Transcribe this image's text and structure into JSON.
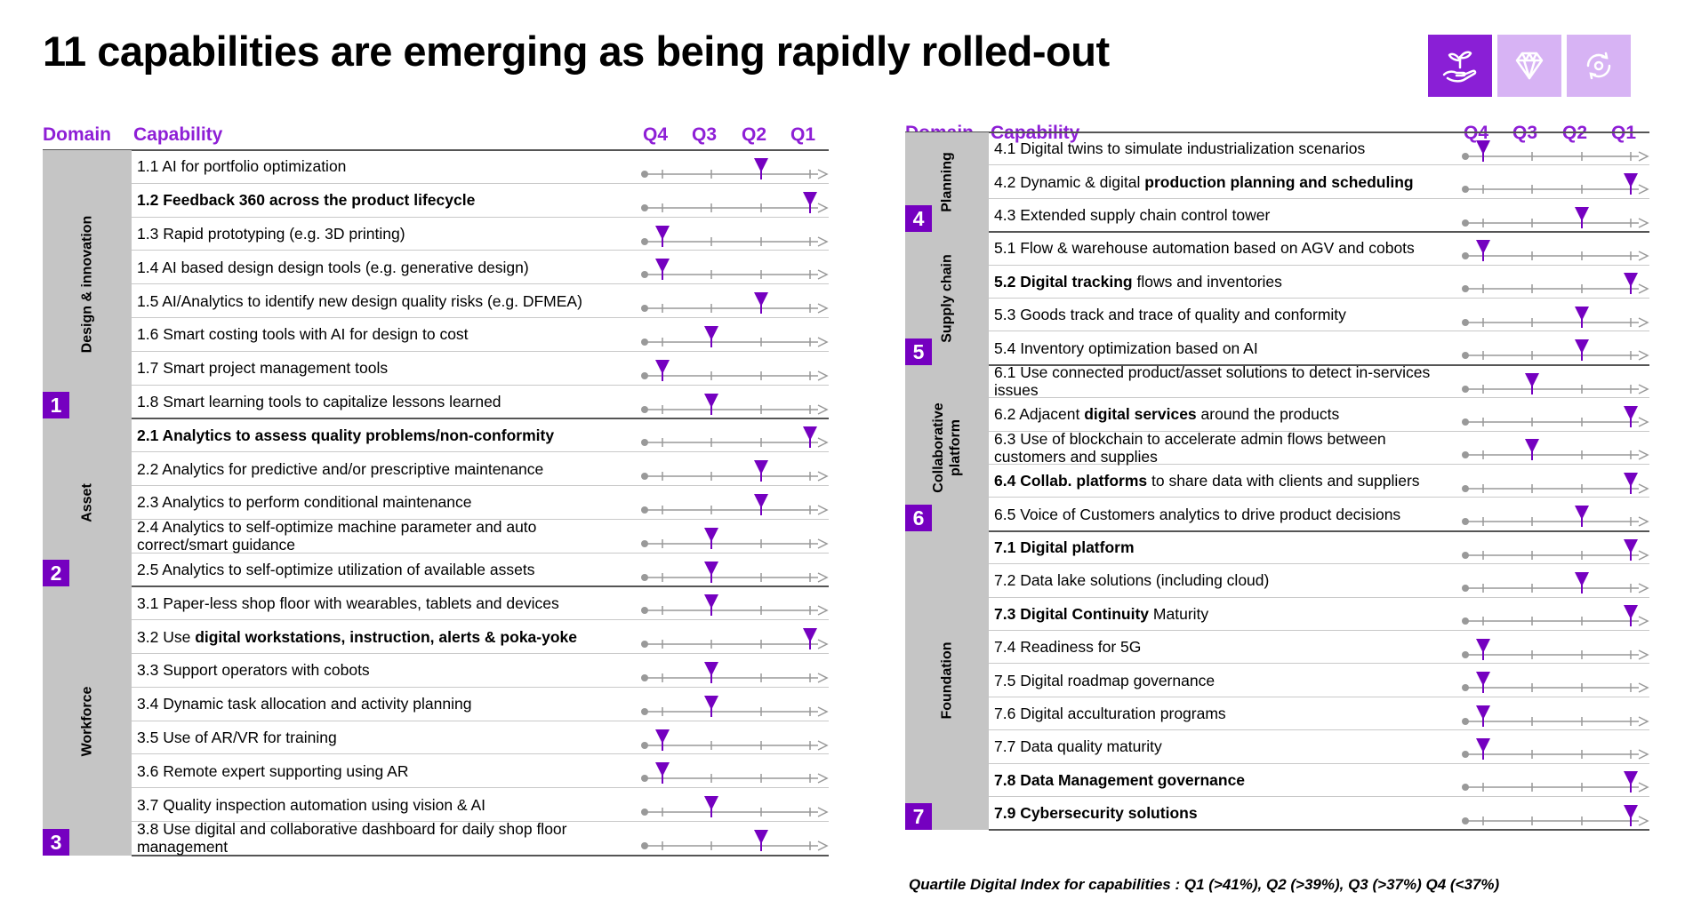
{
  "title": "11 capabilities are emerging as being rapidly rolled-out",
  "icons": [
    "plant-in-hand-icon",
    "diamond-icon",
    "circular-arrows-icon"
  ],
  "colors": {
    "accent": "#7500c0",
    "header": "#8e1fd6",
    "domain_bg": "#c5c5c5",
    "icon_light": "#d7b3f4"
  },
  "headers": {
    "domain": "Domain",
    "capability": "Capability",
    "quartiles": [
      "Q4",
      "Q3",
      "Q2",
      "Q1"
    ]
  },
  "footnote": "Quartile  Digital Index for capabilities : Q1 (>41%), Q2 (>39%), Q3 (>37%) Q4 (<37%)",
  "left_groups": [
    {
      "num": "1",
      "name": "Design & innovation",
      "items": [
        {
          "pre": "1.1 AI for portfolio optimization",
          "bold": "",
          "post": "",
          "q": "Q2"
        },
        {
          "pre": "",
          "bold": "1.2 Feedback 360 across the product lifecycle",
          "post": "",
          "q": "Q1"
        },
        {
          "pre": "1.3 Rapid prototyping (e.g. 3D printing)",
          "bold": "",
          "post": "",
          "q": "Q4"
        },
        {
          "pre": "1.4 AI based design design tools (e.g. generative design)",
          "bold": "",
          "post": "",
          "q": "Q4"
        },
        {
          "pre": "1.5 AI/Analytics to identify new design quality risks (e.g. DFMEA)",
          "bold": "",
          "post": "",
          "q": "Q2"
        },
        {
          "pre": "1.6 Smart costing tools with AI for design to cost",
          "bold": "",
          "post": "",
          "q": "Q3"
        },
        {
          "pre": "1.7 Smart project management tools",
          "bold": "",
          "post": "",
          "q": "Q4"
        },
        {
          "pre": "1.8 Smart learning tools to capitalize lessons learned",
          "bold": "",
          "post": "",
          "q": "Q3"
        }
      ]
    },
    {
      "num": "2",
      "name": "Asset",
      "items": [
        {
          "pre": "",
          "bold": "2.1 Analytics to assess quality problems/non-conformity",
          "post": "",
          "q": "Q1"
        },
        {
          "pre": "2.2 Analytics for predictive and/or prescriptive maintenance",
          "bold": "",
          "post": "",
          "q": "Q2"
        },
        {
          "pre": "2.3 Analytics to perform conditional maintenance",
          "bold": "",
          "post": "",
          "q": "Q2"
        },
        {
          "pre": "2.4 Analytics to self-optimize machine parameter and auto correct/smart guidance",
          "bold": "",
          "post": "",
          "q": "Q3"
        },
        {
          "pre": "2.5 Analytics to self-optimize utilization of available assets",
          "bold": "",
          "post": "",
          "q": "Q3"
        }
      ]
    },
    {
      "num": "3",
      "name": "Workforce",
      "items": [
        {
          "pre": "3.1 Paper-less shop floor with wearables, tablets and devices",
          "bold": "",
          "post": "",
          "q": "Q3"
        },
        {
          "pre": "3.2 Use ",
          "bold": "digital workstations, instruction, alerts & poka-yoke",
          "post": "",
          "q": "Q1"
        },
        {
          "pre": "3.3 Support operators with cobots",
          "bold": "",
          "post": "",
          "q": "Q3"
        },
        {
          "pre": "3.4 Dynamic task allocation and activity planning",
          "bold": "",
          "post": "",
          "q": "Q3"
        },
        {
          "pre": "3.5 Use of AR/VR for training",
          "bold": "",
          "post": "",
          "q": "Q4"
        },
        {
          "pre": "3.6 Remote expert supporting using AR",
          "bold": "",
          "post": "",
          "q": "Q4"
        },
        {
          "pre": "3.7 Quality inspection automation using vision & AI",
          "bold": "",
          "post": "",
          "q": "Q3"
        },
        {
          "pre": "3.8 Use digital and collaborative dashboard for daily shop floor management",
          "bold": "",
          "post": "",
          "q": "Q2"
        }
      ]
    }
  ],
  "right_groups": [
    {
      "num": "4",
      "name": "Planning",
      "items": [
        {
          "pre": "4.1 Digital twins to simulate industrialization scenarios",
          "bold": "",
          "post": "",
          "q": "Q4"
        },
        {
          "pre": "4.2 Dynamic & digital ",
          "bold": "production planning and scheduling",
          "post": "",
          "q": "Q1"
        },
        {
          "pre": "4.3 Extended supply chain control tower",
          "bold": "",
          "post": "",
          "q": "Q2"
        }
      ]
    },
    {
      "num": "5",
      "name": "Supply chain",
      "items": [
        {
          "pre": "5.1 Flow & warehouse automation based on AGV and cobots",
          "bold": "",
          "post": "",
          "q": "Q4"
        },
        {
          "pre": "",
          "bold": "5.2 Digital tracking",
          "post": " flows and inventories",
          "q": "Q1"
        },
        {
          "pre": "5.3 Goods track and trace of quality and conformity",
          "bold": "",
          "post": "",
          "q": "Q2"
        },
        {
          "pre": "5.4 Inventory optimization based on AI",
          "bold": "",
          "post": "",
          "q": "Q2"
        }
      ]
    },
    {
      "num": "6",
      "name": "Collaborative platform",
      "items": [
        {
          "pre": "6.1 Use connected product/asset solutions to detect in-services issues",
          "bold": "",
          "post": "",
          "q": "Q3"
        },
        {
          "pre": "6.2 Adjacent ",
          "bold": "digital services",
          "post": " around the products",
          "q": "Q1"
        },
        {
          "pre": "6.3 Use of blockchain to accelerate admin flows between customers and supplies",
          "bold": "",
          "post": "",
          "q": "Q3"
        },
        {
          "pre": "",
          "bold": "6.4 Collab. platforms",
          "post": " to share data with clients and suppliers",
          "q": "Q1"
        },
        {
          "pre": "6.5 Voice of Customers analytics to drive product decisions",
          "bold": "",
          "post": "",
          "q": "Q2"
        }
      ]
    },
    {
      "num": "7",
      "name": "Foundation",
      "items": [
        {
          "pre": "",
          "bold": "7.1 Digital platform",
          "post": "",
          "q": "Q1"
        },
        {
          "pre": "7.2 Data lake solutions (including cloud)",
          "bold": "",
          "post": "",
          "q": "Q2"
        },
        {
          "pre": "",
          "bold": "7.3 Digital Continuity",
          "post": " Maturity",
          "q": "Q1"
        },
        {
          "pre": "7.4 Readiness for 5G",
          "bold": "",
          "post": "",
          "q": "Q4"
        },
        {
          "pre": "7.5 Digital roadmap governance",
          "bold": "",
          "post": "",
          "q": "Q4"
        },
        {
          "pre": "7.6 Digital acculturation programs",
          "bold": "",
          "post": "",
          "q": "Q4"
        },
        {
          "pre": "7.7 Data quality maturity",
          "bold": "",
          "post": "",
          "q": "Q4"
        },
        {
          "pre": "",
          "bold": "7.8 Data Management governance",
          "post": "",
          "q": "Q1"
        },
        {
          "pre": "",
          "bold": "7.9 Cybersecurity solutions",
          "post": "",
          "q": "Q1"
        }
      ]
    }
  ]
}
